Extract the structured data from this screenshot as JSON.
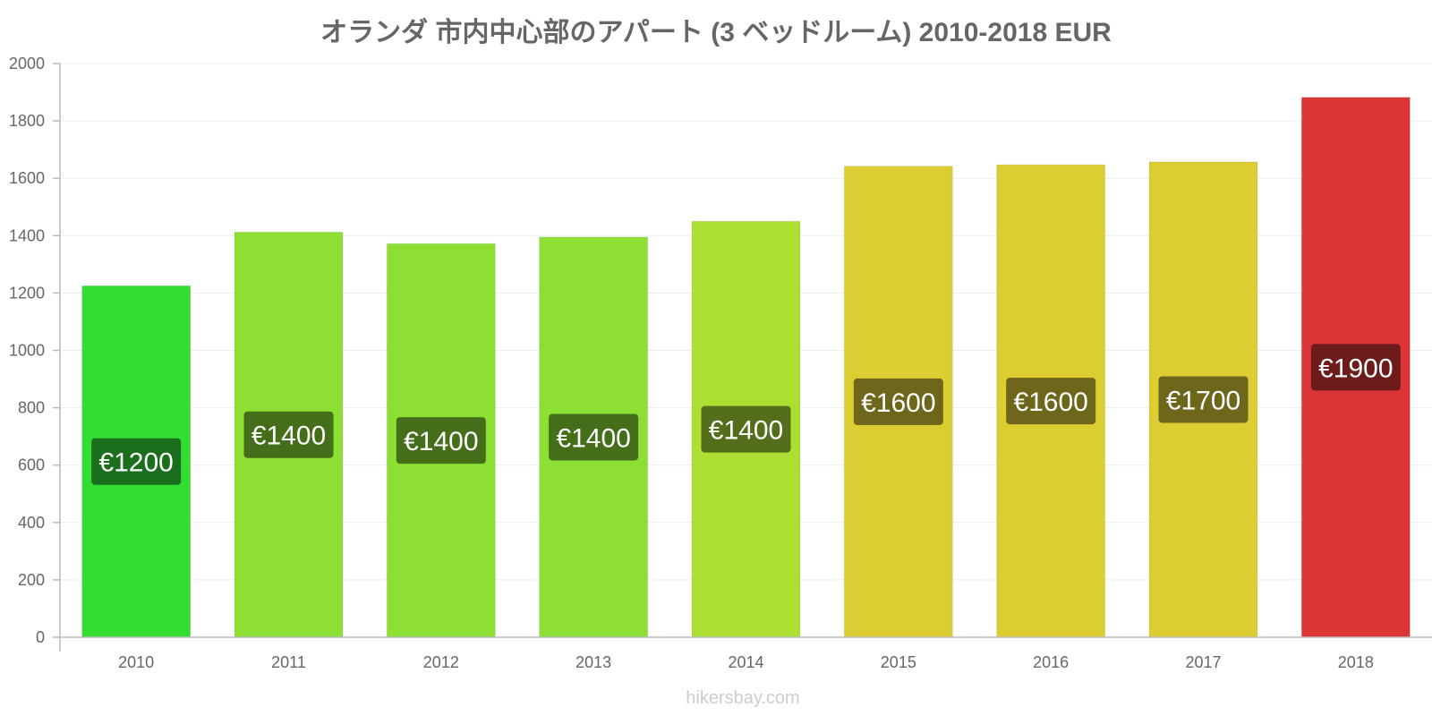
{
  "chart_data": {
    "type": "bar",
    "title": "オランダ 市内中心部のアパート (3 ベッドルーム) 2010-2018 EUR",
    "categories": [
      "2010",
      "2011",
      "2012",
      "2013",
      "2014",
      "2015",
      "2016",
      "2017",
      "2018"
    ],
    "values": [
      1225,
      1412,
      1372,
      1395,
      1450,
      1642,
      1647,
      1657,
      1882
    ],
    "data_labels": [
      "€1200",
      "€1400",
      "€1400",
      "€1400",
      "€1400",
      "€1600",
      "€1600",
      "€1700",
      "€1900"
    ],
    "bar_colors": [
      "#33dd33",
      "#8ddf33",
      "#8ddf33",
      "#8ddf33",
      "#addf33",
      "#dccd33",
      "#dccd33",
      "#dccd33",
      "#dc3535"
    ],
    "label_bg_colors": [
      "#1b6e1b",
      "#456e1b",
      "#456e1b",
      "#456e1b",
      "#556e1b",
      "#6e661b",
      "#6e661b",
      "#6e661b",
      "#6e1b1b"
    ],
    "ylim": [
      0,
      2000
    ],
    "yticks": [
      0,
      200,
      400,
      600,
      800,
      1000,
      1200,
      1400,
      1600,
      1800,
      2000
    ],
    "grid": true,
    "legend": "none"
  },
  "watermark": "hikersbay.com"
}
